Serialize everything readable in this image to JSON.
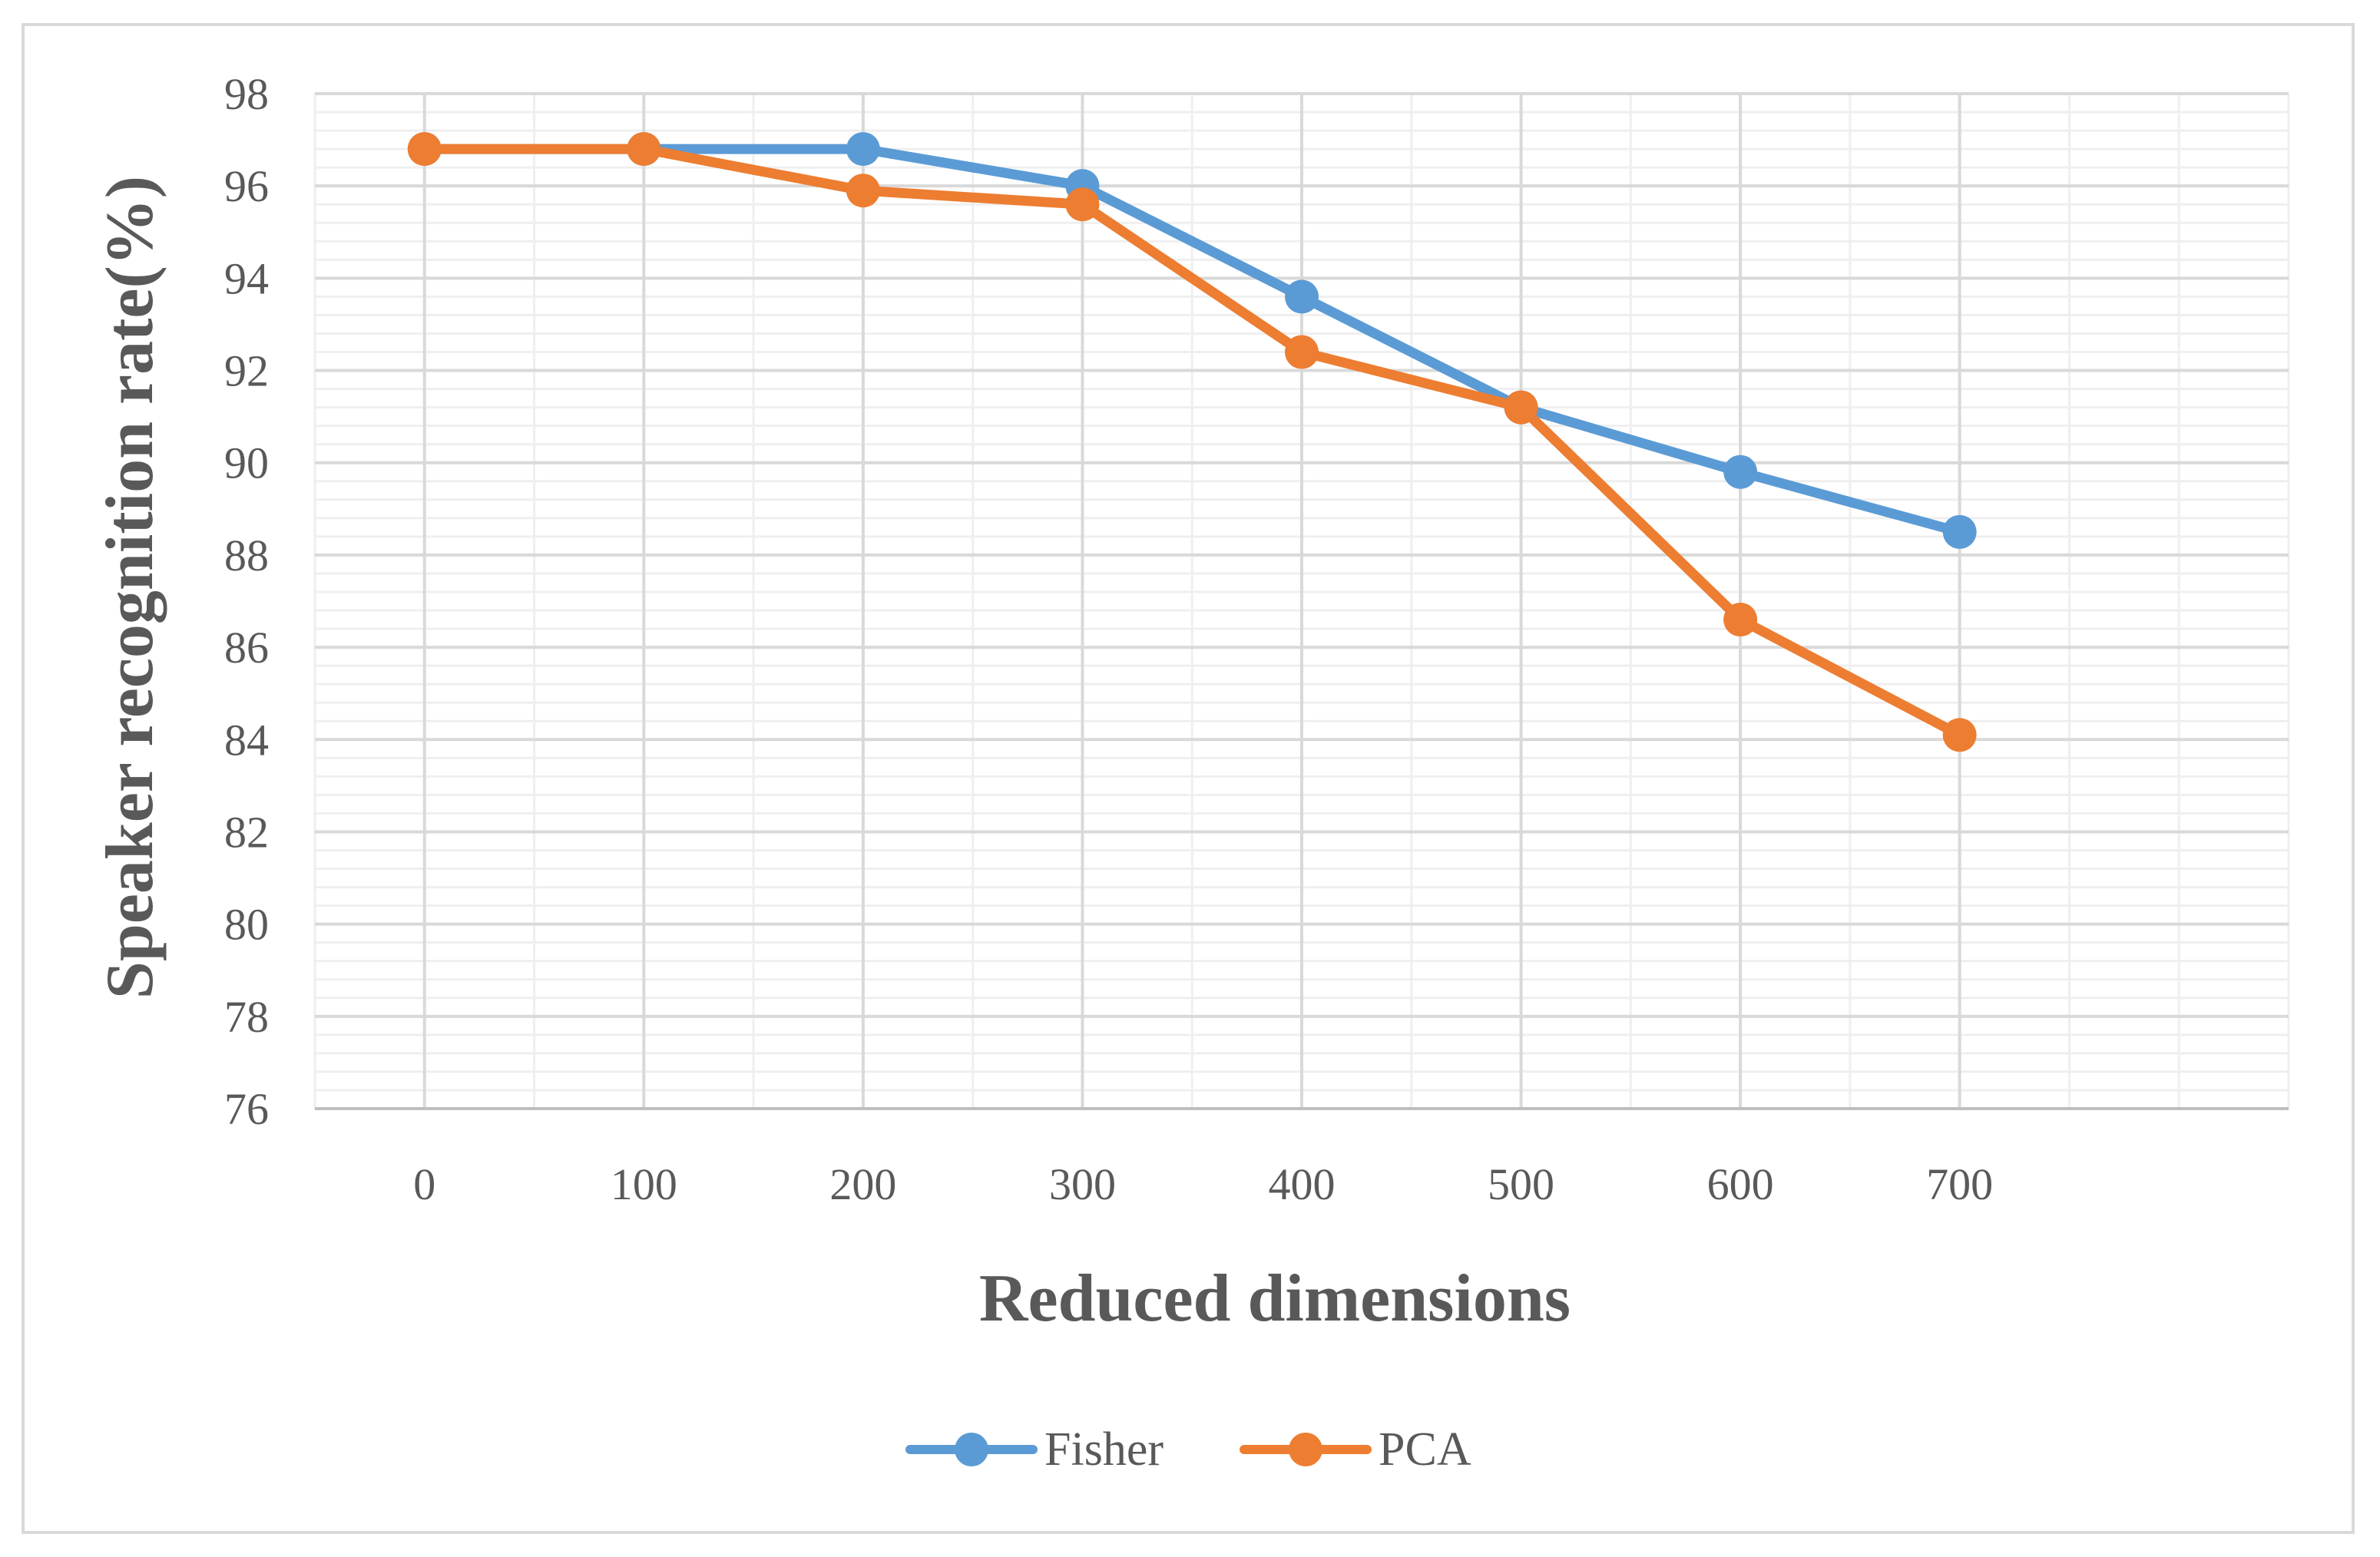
{
  "chart_data": {
    "type": "line",
    "title": "",
    "xlabel": "Reduced dimensions",
    "ylabel": "Speaker recognition rate(%)",
    "x": [
      0,
      100,
      200,
      300,
      400,
      500,
      600,
      700
    ],
    "x_tick_labels": [
      "0",
      "100",
      "200",
      "300",
      "400",
      "500",
      "600",
      "700"
    ],
    "y_tick_labels": [
      "76",
      "78",
      "80",
      "82",
      "84",
      "86",
      "88",
      "90",
      "92",
      "94",
      "96",
      "98"
    ],
    "xlim": [
      -50,
      850
    ],
    "ylim": [
      76,
      98
    ],
    "grid": true,
    "legend_position": "bottom-center",
    "series": [
      {
        "name": "Fisher",
        "color": "#5b9bd5",
        "values": [
          96.8,
          96.8,
          96.8,
          96.0,
          93.6,
          91.2,
          89.8,
          88.5
        ]
      },
      {
        "name": "PCA",
        "color": "#ed7d31",
        "values": [
          96.8,
          96.8,
          95.9,
          95.6,
          92.4,
          91.2,
          86.6,
          84.1
        ]
      }
    ]
  }
}
